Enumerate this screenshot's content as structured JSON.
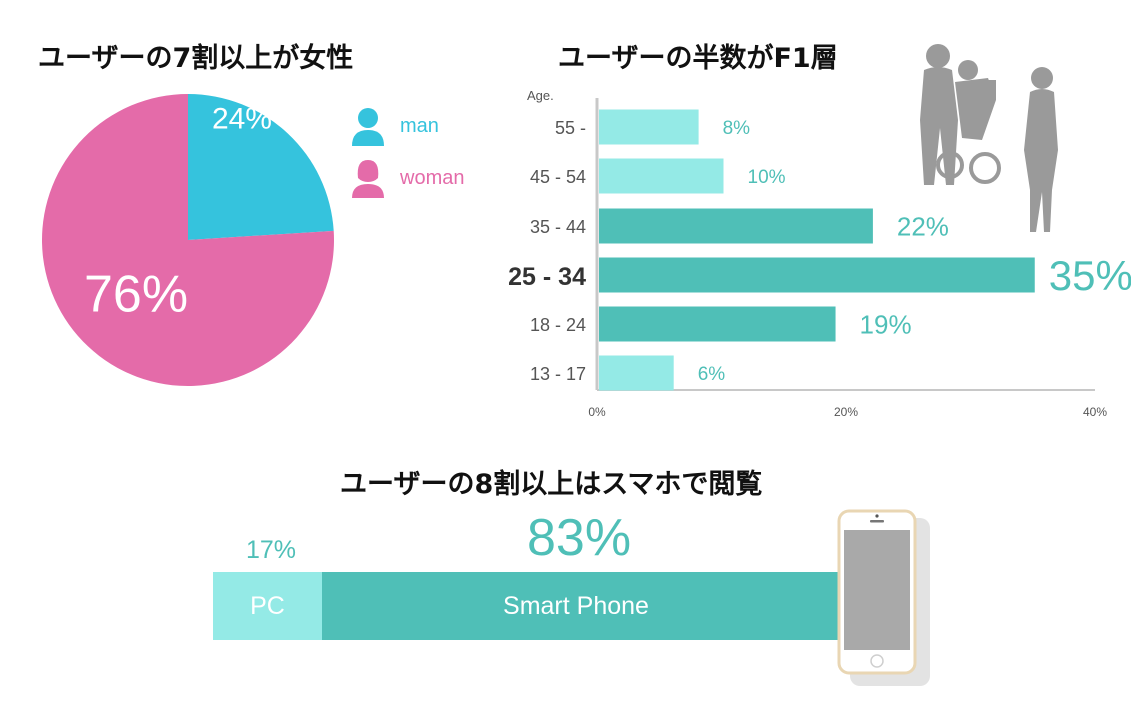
{
  "colors": {
    "man": "#35c3dd",
    "woman": "#e46ba9",
    "teal": "#4fbfb7",
    "teal_light": "#94eae6",
    "silhouette": "#9a9a9a"
  },
  "gender": {
    "title": "ユーザーの7割以上が女性",
    "legend_man": "man",
    "legend_woman": "woman",
    "man_label": "24%",
    "woman_label": "76%"
  },
  "age": {
    "title": "ユーザーの半数がF1層",
    "axis_title": "Age.",
    "x_ticks": [
      "0%",
      "20%",
      "40%"
    ]
  },
  "device": {
    "title": "ユーザーの8割以上はスマホで閲覧",
    "pc_label": "PC",
    "pc_pct": "17%",
    "sp_label": "Smart Phone",
    "sp_pct": "83%"
  },
  "chart_data": [
    {
      "type": "pie",
      "title": "ユーザーの7割以上が女性",
      "categories": [
        "man",
        "woman"
      ],
      "values": [
        24,
        76
      ],
      "legend": "right"
    },
    {
      "type": "bar",
      "orientation": "horizontal",
      "title": "ユーザーの半数がF1層",
      "ylabel": "Age.",
      "categories": [
        "55 -",
        "45 - 54",
        "35 - 44",
        "25 - 34",
        "18 - 24",
        "13 - 17"
      ],
      "values": [
        8,
        10,
        22,
        35,
        19,
        6
      ],
      "labels": [
        "8%",
        "10%",
        "22%",
        "35%",
        "19%",
        "6%"
      ],
      "highlight": "25 - 34",
      "xlim": [
        0,
        40
      ],
      "xticks": [
        "0%",
        "20%",
        "40%"
      ]
    },
    {
      "type": "bar",
      "stacked": true,
      "title": "ユーザーの8割以上はスマホで閲覧",
      "categories": [
        "PC",
        "Smart Phone"
      ],
      "values": [
        17,
        83
      ]
    }
  ]
}
